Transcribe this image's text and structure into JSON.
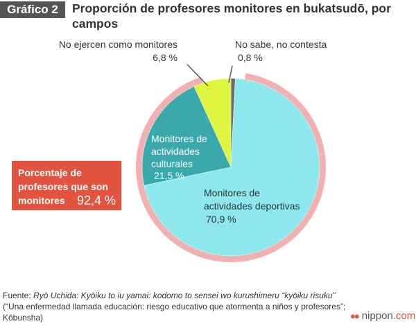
{
  "header": {
    "badge": "Gráfico 2",
    "title": "Proporción de profesores monitores en bukatsudō, por campos"
  },
  "chart_data": {
    "type": "pie",
    "title": "Proporción de profesores monitores en bukatsudō, por campos",
    "slices": [
      {
        "label_lines": [
          "No sabe, no contesta"
        ],
        "value": 0.8,
        "value_label": "0,8 %",
        "color": "#6b6b6b"
      },
      {
        "label_lines": [
          "Monitores de",
          "actividades deportivas"
        ],
        "value": 70.9,
        "value_label": "70,9 %",
        "color": "#8ce8ec"
      },
      {
        "label_lines": [
          "Monitores de",
          "actividades",
          "culturales"
        ],
        "value": 21.5,
        "value_label": "21,5 %",
        "color": "#3aa9ac"
      },
      {
        "label_lines": [
          "No ejercen como monitores"
        ],
        "value": 6.8,
        "value_label": "6,8 %",
        "color": "#e0f53f"
      }
    ],
    "highlight": {
      "label": "Porcentaje de profesores que son monitores",
      "value": 92.4,
      "value_label": "92,4 %",
      "ring_color": "#f2b1b1"
    }
  },
  "callout": {
    "label": "Porcentaje de profesores que son monitores",
    "value": "92,4 %",
    "color": "#e2543f"
  },
  "footer": {
    "source_prefix": "Fuente: ",
    "source_italic": "Ryō Uchida: Kyōiku to iu yamai: kodomo to sensei wo kurushimeru “kyōiku risuku”",
    "source_rest": " (“Una enfermedad llamada educación: riesgo educativo que atormenta a niños y profesores”; Kōbunsha)",
    "logo_icon": "nippon-dot-com-logo",
    "logo_text_main": "nippon",
    "logo_text_accent": ".com"
  }
}
